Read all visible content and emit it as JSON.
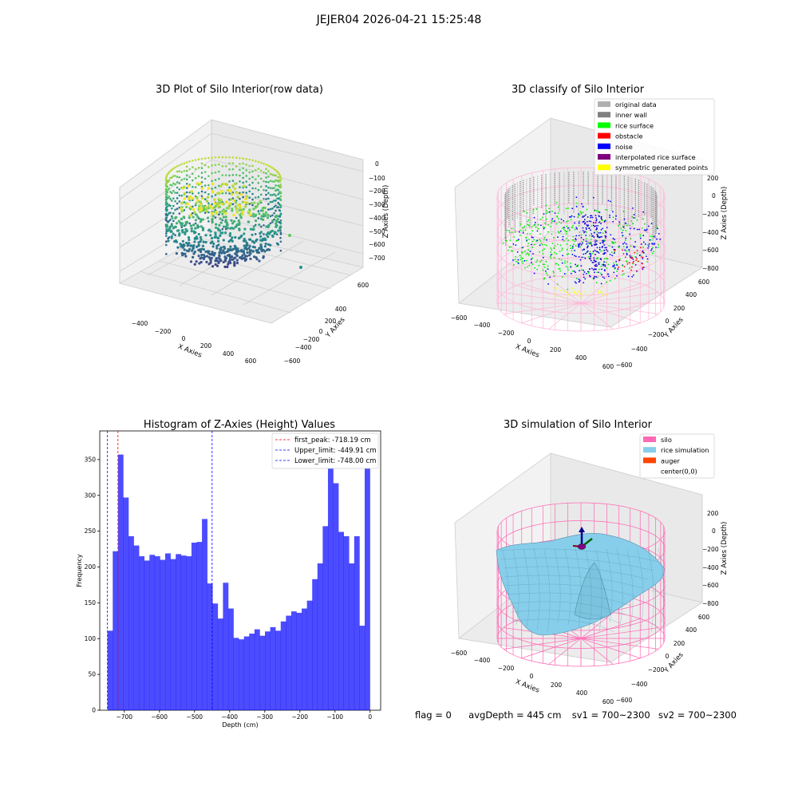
{
  "suptitle": "JEJER04 2026-04-21 15:25:48",
  "panels": {
    "raw": {
      "title": "3D Plot of Silo Interior(row data)",
      "xlabel": "X Axies",
      "ylabel": "Y Axies",
      "zlabel": "Z Axies (Depth)",
      "xticks": [
        "−400",
        "−200",
        "0",
        "200",
        "400",
        "600"
      ],
      "yticks": [
        "600",
        "400",
        "200",
        "0",
        "−200",
        "−400",
        "−600"
      ],
      "zticks": [
        "0",
        "−100",
        "−200",
        "−300",
        "−400",
        "−500",
        "−600",
        "−700"
      ]
    },
    "classify": {
      "title": "3D classify of Silo Interior",
      "xlabel": "X Axies",
      "ylabel": "Y Axies",
      "zlabel": "Z Axies (Depth)",
      "xticks": [
        "−600",
        "−400",
        "−200",
        "0",
        "200",
        "400",
        "600"
      ],
      "yticks": [
        "600",
        "400",
        "200",
        "0",
        "−200",
        "−400",
        "−600"
      ],
      "zticks": [
        "200",
        "0",
        "−200",
        "−400",
        "−600",
        "−800"
      ],
      "legend": [
        {
          "label": "original data",
          "color": "#b0b0b0"
        },
        {
          "label": "inner wall",
          "color": "#808080"
        },
        {
          "label": "rice surface",
          "color": "#00ff00"
        },
        {
          "label": "obstacle",
          "color": "#ff0000"
        },
        {
          "label": "noise",
          "color": "#0000ff"
        },
        {
          "label": "interpolated rice surface",
          "color": "#800080"
        },
        {
          "label": "symmetric generated points",
          "color": "#ffff00"
        }
      ]
    },
    "simulation": {
      "title": "3D simulation of Silo Interior",
      "xlabel": "X Axies",
      "ylabel": "Y Axies",
      "zlabel": "Z Axies (Depth)",
      "xticks": [
        "−600",
        "−400",
        "−200",
        "0",
        "200",
        "400",
        "600"
      ],
      "yticks": [
        "600",
        "400",
        "200",
        "0",
        "−200",
        "−400",
        "−600"
      ],
      "zticks": [
        "200",
        "0",
        "−200",
        "−400",
        "−600",
        "−800"
      ],
      "legend": [
        {
          "label": "silo",
          "color": "#ff69b4"
        },
        {
          "label": "rice simulation",
          "color": "#87ceeb"
        },
        {
          "label": "auger",
          "color": "#ff4500"
        },
        {
          "label": "center(0,0)",
          "color": ""
        }
      ]
    }
  },
  "status_line": {
    "flag": "flag = 0",
    "avg_depth": "avgDepth = 445 cm",
    "sv1": "sv1 = 700~2300",
    "sv2": "sv2 = 700~2300"
  },
  "chart_data": [
    {
      "type": "bar",
      "title": "Histogram of Z-Axies (Height) Values",
      "xlabel": "Depth (cm)",
      "ylabel": "Frequency",
      "bar_color": "#0000ff",
      "xlim": [
        -770,
        30
      ],
      "ylim": [
        0,
        390
      ],
      "xticks": [
        -700,
        -600,
        -500,
        -400,
        -300,
        -200,
        -100,
        0
      ],
      "xtick_labels": [
        "−700",
        "−600",
        "−500",
        "−400",
        "−300",
        "−200",
        "−100",
        "0"
      ],
      "yticks": [
        0,
        50,
        100,
        150,
        200,
        250,
        300,
        350
      ],
      "yticks_labels": [
        "0",
        "50",
        "100",
        "150",
        "200",
        "250",
        "300",
        "350"
      ],
      "bin_start": -748,
      "bin_width": 14.95,
      "values": [
        111,
        222,
        357,
        297,
        243,
        230,
        215,
        209,
        217,
        215,
        210,
        219,
        211,
        218,
        216,
        215,
        234,
        235,
        267,
        177,
        149,
        128,
        178,
        142,
        101,
        99,
        103,
        107,
        113,
        104,
        110,
        116,
        111,
        124,
        132,
        138,
        136,
        142,
        153,
        183,
        205,
        257,
        340,
        317,
        249,
        243,
        205,
        243,
        118,
        370
      ],
      "vlines": [
        {
          "label": "first_peak: -718.19 cm",
          "x": -718.19,
          "color": "#ff0000"
        },
        {
          "label": "Upper_limit: -449.91 cm",
          "x": -449.91,
          "color": "#0000ff"
        },
        {
          "label": "Lower_limit: -748.00 cm",
          "x": -748.0,
          "color": "#0000ff"
        }
      ],
      "legend_position": "top-right"
    }
  ]
}
